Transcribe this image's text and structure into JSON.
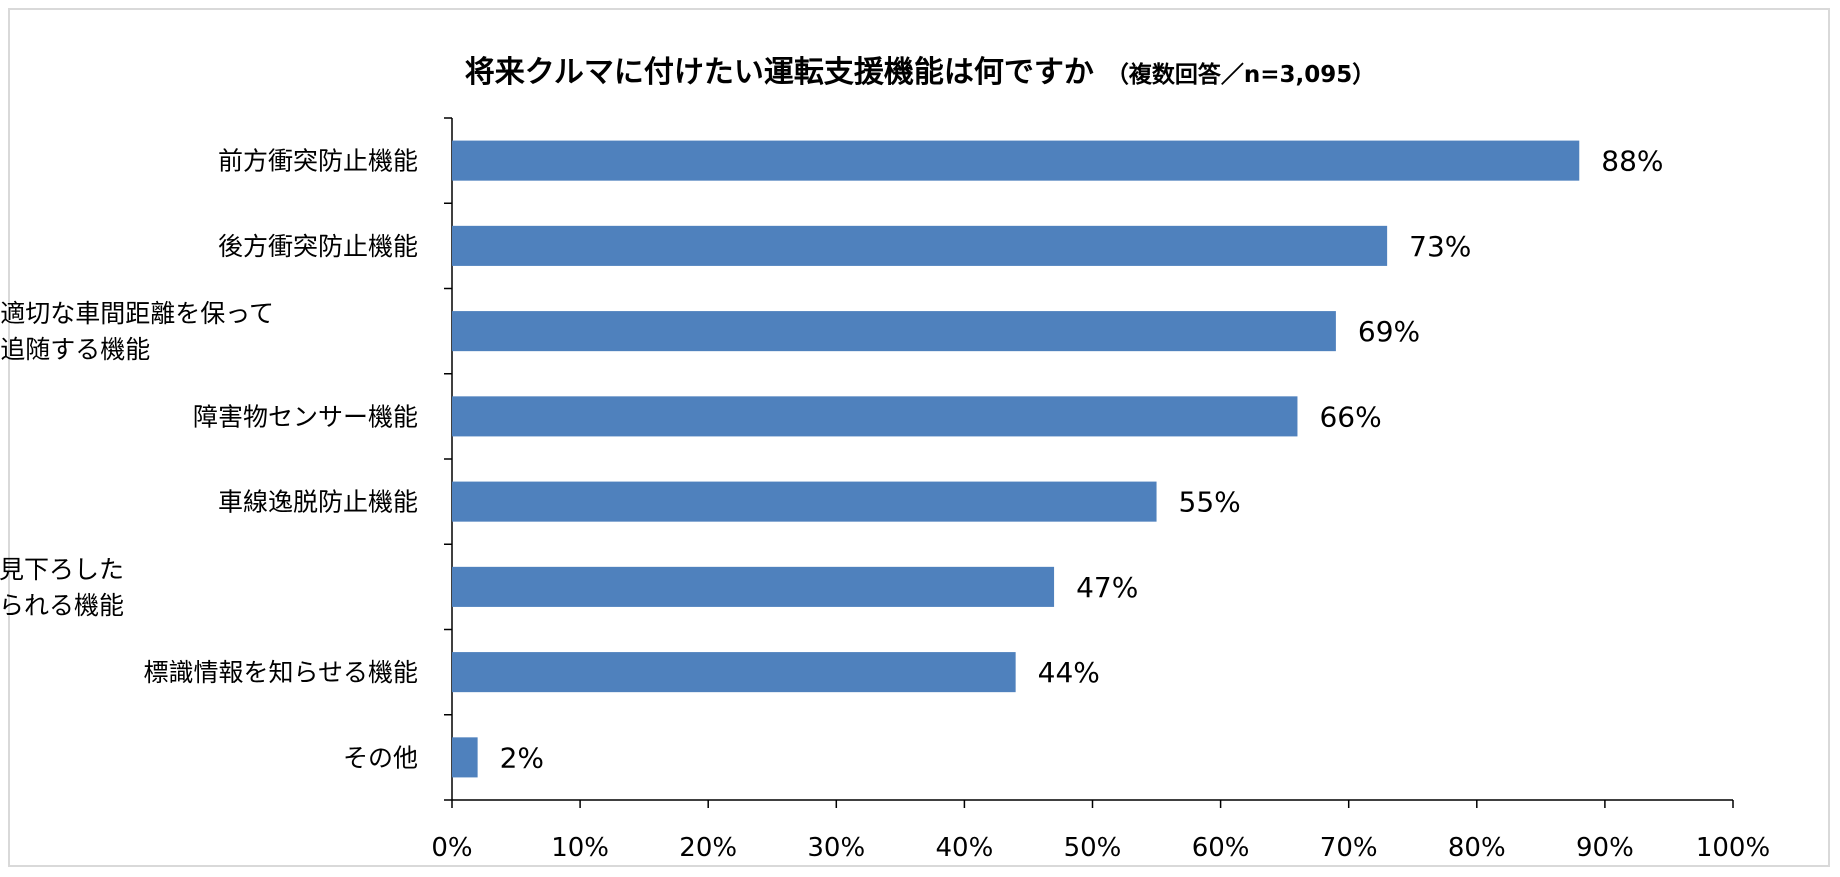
{
  "chart_data": {
    "type": "bar",
    "orientation": "horizontal",
    "title": "将来クルマに付けたい運転支援機能は何ですか",
    "subtitle": "（複数回答／n=3,095）",
    "categories": [
      [
        "前方衝突防止機能"
      ],
      [
        "後方衝突防止機能"
      ],
      [
        "適切な車間距離を保って",
        "追随する機能"
      ],
      [
        "障害物センサー機能"
      ],
      [
        "車線逸脱防止機能"
      ],
      [
        "車両を上空から見下ろした",
        "ような映像が見られる機能"
      ],
      [
        "標識情報を知らせる機能"
      ],
      [
        "その他"
      ]
    ],
    "values": [
      88,
      73,
      69,
      66,
      55,
      47,
      44,
      2
    ],
    "value_labels": [
      "88%",
      "73%",
      "69%",
      "66%",
      "55%",
      "47%",
      "44%",
      "2%"
    ],
    "xlim": [
      0,
      100
    ],
    "xticks": [
      0,
      10,
      20,
      30,
      40,
      50,
      60,
      70,
      80,
      90,
      100
    ],
    "xtick_labels": [
      "0%",
      "10%",
      "20%",
      "30%",
      "40%",
      "50%",
      "60%",
      "70%",
      "80%",
      "90%",
      "100%"
    ],
    "grid": false,
    "legend": "none",
    "bar_color": "#4f81bd"
  }
}
